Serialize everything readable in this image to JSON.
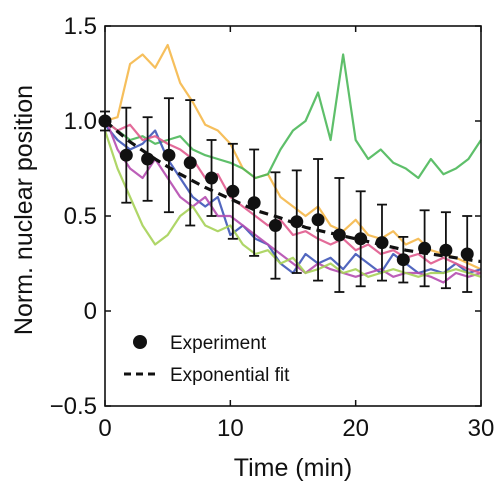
{
  "chart_data": {
    "type": "line",
    "title": "",
    "xlabel": "Time (min)",
    "ylabel": "Norm. nuclear position",
    "xlim": [
      0,
      30
    ],
    "ylim": [
      -0.5,
      1.5
    ],
    "xticks": [
      0,
      10,
      20,
      30
    ],
    "xtick_labels": [
      "0",
      "10",
      "20",
      "30"
    ],
    "yticks": [
      -0.5,
      0,
      0.5,
      1.0,
      1.5
    ],
    "ytick_labels": [
      "−0.5",
      "0",
      "0.5",
      "1.0",
      "1.5"
    ],
    "grid": false,
    "legend": {
      "placement": "bottom-left",
      "entries": [
        {
          "label": "Experiment",
          "marker": "filled-circle"
        },
        {
          "label": "Exponential fit",
          "marker": "dashed-line"
        }
      ]
    },
    "traces": [
      {
        "color": "#f5b84a",
        "x": [
          0,
          1,
          2,
          3,
          4,
          5,
          6,
          7,
          8,
          9,
          10,
          11,
          12,
          13,
          14,
          15,
          16,
          17,
          18,
          19,
          20,
          21,
          22,
          23,
          24,
          25,
          26,
          27,
          28,
          29,
          30
        ],
        "y": [
          1.0,
          1.02,
          1.3,
          1.35,
          1.28,
          1.4,
          1.2,
          1.1,
          0.98,
          0.95,
          0.88,
          0.75,
          0.7,
          0.72,
          0.6,
          0.55,
          0.5,
          0.55,
          0.45,
          0.42,
          0.48,
          0.4,
          0.38,
          0.42,
          0.35,
          0.38,
          0.32,
          0.3,
          0.28,
          0.25,
          0.22
        ]
      },
      {
        "color": "#4cb85a",
        "x": [
          0,
          1,
          2,
          3,
          4,
          5,
          6,
          7,
          8,
          9,
          10,
          11,
          12,
          13,
          14,
          15,
          16,
          17,
          18,
          19,
          20,
          21,
          22,
          23,
          24,
          25,
          26,
          27,
          28,
          29,
          30
        ],
        "y": [
          1.0,
          0.95,
          0.9,
          0.92,
          0.88,
          0.9,
          0.92,
          0.85,
          0.82,
          0.8,
          0.78,
          0.75,
          0.7,
          0.72,
          0.85,
          0.95,
          1.0,
          1.15,
          0.9,
          1.35,
          0.9,
          0.8,
          0.85,
          0.78,
          0.75,
          0.7,
          0.8,
          0.72,
          0.75,
          0.8,
          0.9
        ]
      },
      {
        "color": "#3f57b8",
        "x": [
          0,
          1,
          2,
          3,
          4,
          5,
          6,
          7,
          8,
          9,
          10,
          11,
          12,
          13,
          14,
          15,
          16,
          17,
          18,
          19,
          20,
          21,
          22,
          23,
          24,
          25,
          26,
          27,
          28,
          29,
          30
        ],
        "y": [
          0.98,
          0.9,
          0.85,
          0.88,
          0.95,
          0.8,
          0.7,
          0.6,
          0.55,
          0.6,
          0.4,
          0.45,
          0.38,
          0.35,
          0.25,
          0.2,
          0.3,
          0.25,
          0.28,
          0.22,
          0.3,
          0.25,
          0.2,
          0.3,
          0.25,
          0.2,
          0.22,
          0.2,
          0.25,
          0.2,
          0.22
        ]
      },
      {
        "color": "#b54cb0",
        "x": [
          0,
          1,
          2,
          3,
          4,
          5,
          6,
          7,
          8,
          9,
          10,
          11,
          12,
          13,
          14,
          15,
          16,
          17,
          18,
          19,
          20,
          21,
          22,
          23,
          24,
          25,
          26,
          27,
          28,
          29,
          30
        ],
        "y": [
          1.02,
          0.85,
          0.75,
          0.7,
          0.8,
          0.7,
          0.6,
          0.55,
          0.6,
          0.5,
          0.5,
          0.45,
          0.4,
          0.35,
          0.3,
          0.25,
          0.2,
          0.25,
          0.22,
          0.2,
          0.18,
          0.2,
          0.22,
          0.18,
          0.2,
          0.2,
          0.18,
          0.15,
          0.2,
          0.18,
          0.2
        ]
      },
      {
        "color": "#a6d158",
        "x": [
          0,
          1,
          2,
          3,
          4,
          5,
          6,
          7,
          8,
          9,
          10,
          11,
          12,
          13,
          14,
          15,
          16,
          17,
          18,
          19,
          20,
          21,
          22,
          23,
          24,
          25,
          26,
          27,
          28,
          29,
          30
        ],
        "y": [
          0.95,
          0.75,
          0.6,
          0.45,
          0.35,
          0.4,
          0.5,
          0.55,
          0.45,
          0.42,
          0.45,
          0.35,
          0.3,
          0.32,
          0.25,
          0.28,
          0.2,
          0.22,
          0.25,
          0.2,
          0.22,
          0.18,
          0.2,
          0.22,
          0.2,
          0.18,
          0.2,
          0.2,
          0.22,
          0.2,
          0.18
        ]
      },
      {
        "color": "#e05b8e",
        "x": [
          0,
          1,
          2,
          3,
          4,
          5,
          6,
          7,
          8,
          9,
          10,
          11,
          12,
          13,
          14,
          15,
          16,
          17,
          18,
          19,
          20,
          21,
          22,
          23,
          24,
          25,
          26,
          27,
          28,
          29,
          30
        ],
        "y": [
          1.0,
          0.95,
          0.98,
          0.9,
          0.92,
          0.88,
          0.85,
          0.8,
          0.7,
          0.72,
          0.6,
          0.55,
          0.5,
          0.45,
          0.48,
          0.4,
          0.42,
          0.38,
          0.35,
          0.38,
          0.32,
          0.35,
          0.3,
          0.32,
          0.28,
          0.3,
          0.25,
          0.28,
          0.25,
          0.22,
          0.2
        ]
      }
    ],
    "experiment": {
      "name": "Experiment",
      "color": "#111111",
      "x": [
        0,
        1.7,
        3.4,
        5.1,
        6.8,
        8.5,
        10.2,
        11.9,
        13.6,
        15.3,
        17.0,
        18.7,
        20.4,
        22.1,
        23.8,
        25.5,
        27.2,
        28.9
      ],
      "y": [
        1.0,
        0.82,
        0.8,
        0.82,
        0.78,
        0.7,
        0.63,
        0.57,
        0.45,
        0.47,
        0.48,
        0.4,
        0.38,
        0.36,
        0.27,
        0.33,
        0.32,
        0.3
      ],
      "err": [
        0.05,
        0.25,
        0.22,
        0.3,
        0.33,
        0.2,
        0.25,
        0.28,
        0.28,
        0.27,
        0.32,
        0.3,
        0.25,
        0.2,
        0.12,
        0.2,
        0.2,
        0.2
      ]
    },
    "fit": {
      "name": "Exponential fit",
      "color": "#111111",
      "x": [
        0,
        2,
        4,
        6,
        8,
        10,
        12,
        14,
        16,
        18,
        20,
        22,
        24,
        26,
        28,
        30
      ],
      "y": [
        1.0,
        0.89,
        0.8,
        0.72,
        0.65,
        0.59,
        0.53,
        0.49,
        0.44,
        0.41,
        0.38,
        0.35,
        0.32,
        0.3,
        0.28,
        0.26
      ]
    }
  }
}
